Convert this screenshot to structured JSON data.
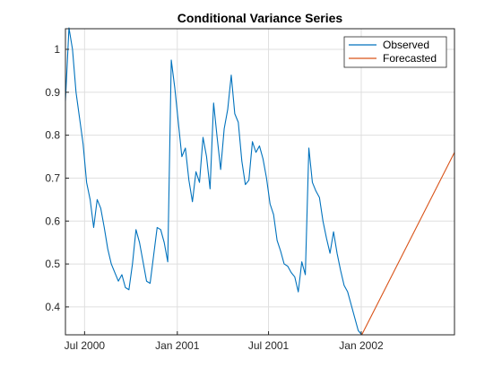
{
  "chart_data": {
    "type": "line",
    "title": "Conditional Variance Series",
    "xlabel": "",
    "ylabel": "",
    "x_ticks": [
      {
        "date": "2000-07-01",
        "label": "Jul 2000"
      },
      {
        "date": "2001-01-01",
        "label": "Jan 2001"
      },
      {
        "date": "2001-07-01",
        "label": "Jul 2001"
      },
      {
        "date": "2002-01-01",
        "label": "Jan 2002"
      }
    ],
    "y_ticks": [
      0.4,
      0.5,
      0.6,
      0.7,
      0.8,
      0.9,
      1
    ],
    "xlim": [
      "2000-05-24",
      "2002-07-05"
    ],
    "ylim": [
      0.335,
      1.048
    ],
    "grid": true,
    "legend_position": "top-right",
    "series": [
      {
        "name": "Observed",
        "color": "#0072bd",
        "points": [
          [
            "2000-05-24",
            0.88
          ],
          [
            "2000-05-31",
            1.05
          ],
          [
            "2000-06-07",
            1.0
          ],
          [
            "2000-06-14",
            0.9
          ],
          [
            "2000-06-21",
            0.84
          ],
          [
            "2000-06-28",
            0.78
          ],
          [
            "2000-07-05",
            0.69
          ],
          [
            "2000-07-12",
            0.65
          ],
          [
            "2000-07-19",
            0.585
          ],
          [
            "2000-07-26",
            0.65
          ],
          [
            "2000-08-02",
            0.63
          ],
          [
            "2000-08-09",
            0.585
          ],
          [
            "2000-08-16",
            0.535
          ],
          [
            "2000-08-23",
            0.5
          ],
          [
            "2000-08-30",
            0.48
          ],
          [
            "2000-09-06",
            0.46
          ],
          [
            "2000-09-13",
            0.475
          ],
          [
            "2000-09-20",
            0.445
          ],
          [
            "2000-09-27",
            0.44
          ],
          [
            "2000-10-04",
            0.5
          ],
          [
            "2000-10-11",
            0.58
          ],
          [
            "2000-10-18",
            0.55
          ],
          [
            "2000-10-25",
            0.505
          ],
          [
            "2000-11-01",
            0.46
          ],
          [
            "2000-11-08",
            0.455
          ],
          [
            "2000-11-15",
            0.52
          ],
          [
            "2000-11-22",
            0.585
          ],
          [
            "2000-11-29",
            0.58
          ],
          [
            "2000-12-06",
            0.55
          ],
          [
            "2000-12-13",
            0.505
          ],
          [
            "2000-12-20",
            0.975
          ],
          [
            "2000-12-27",
            0.91
          ],
          [
            "2001-01-03",
            0.83
          ],
          [
            "2001-01-10",
            0.75
          ],
          [
            "2001-01-17",
            0.77
          ],
          [
            "2001-01-24",
            0.695
          ],
          [
            "2001-01-31",
            0.645
          ],
          [
            "2001-02-07",
            0.715
          ],
          [
            "2001-02-14",
            0.69
          ],
          [
            "2001-02-21",
            0.795
          ],
          [
            "2001-02-28",
            0.75
          ],
          [
            "2001-03-07",
            0.675
          ],
          [
            "2001-03-14",
            0.875
          ],
          [
            "2001-03-21",
            0.795
          ],
          [
            "2001-03-28",
            0.72
          ],
          [
            "2001-04-04",
            0.815
          ],
          [
            "2001-04-11",
            0.86
          ],
          [
            "2001-04-18",
            0.94
          ],
          [
            "2001-04-25",
            0.85
          ],
          [
            "2001-05-02",
            0.83
          ],
          [
            "2001-05-09",
            0.74
          ],
          [
            "2001-05-16",
            0.685
          ],
          [
            "2001-05-23",
            0.695
          ],
          [
            "2001-05-30",
            0.785
          ],
          [
            "2001-06-06",
            0.76
          ],
          [
            "2001-06-13",
            0.775
          ],
          [
            "2001-06-20",
            0.745
          ],
          [
            "2001-06-27",
            0.7
          ],
          [
            "2001-07-04",
            0.64
          ],
          [
            "2001-07-11",
            0.615
          ],
          [
            "2001-07-18",
            0.555
          ],
          [
            "2001-07-25",
            0.53
          ],
          [
            "2001-08-01",
            0.5
          ],
          [
            "2001-08-08",
            0.495
          ],
          [
            "2001-08-15",
            0.48
          ],
          [
            "2001-08-22",
            0.47
          ],
          [
            "2001-08-29",
            0.435
          ],
          [
            "2001-09-05",
            0.505
          ],
          [
            "2001-09-12",
            0.475
          ],
          [
            "2001-09-19",
            0.77
          ],
          [
            "2001-09-26",
            0.69
          ],
          [
            "2001-10-03",
            0.67
          ],
          [
            "2001-10-10",
            0.655
          ],
          [
            "2001-10-17",
            0.6
          ],
          [
            "2001-10-24",
            0.56
          ],
          [
            "2001-10-31",
            0.525
          ],
          [
            "2001-11-07",
            0.575
          ],
          [
            "2001-11-14",
            0.525
          ],
          [
            "2001-11-21",
            0.485
          ],
          [
            "2001-11-28",
            0.45
          ],
          [
            "2001-12-05",
            0.435
          ],
          [
            "2001-12-12",
            0.405
          ],
          [
            "2001-12-19",
            0.375
          ],
          [
            "2001-12-26",
            0.345
          ],
          [
            "2002-01-02",
            0.335
          ]
        ]
      },
      {
        "name": "Forecasted",
        "color": "#d95319",
        "points": [
          [
            "2002-01-02",
            0.335
          ],
          [
            "2002-07-05",
            0.76
          ]
        ]
      }
    ]
  }
}
